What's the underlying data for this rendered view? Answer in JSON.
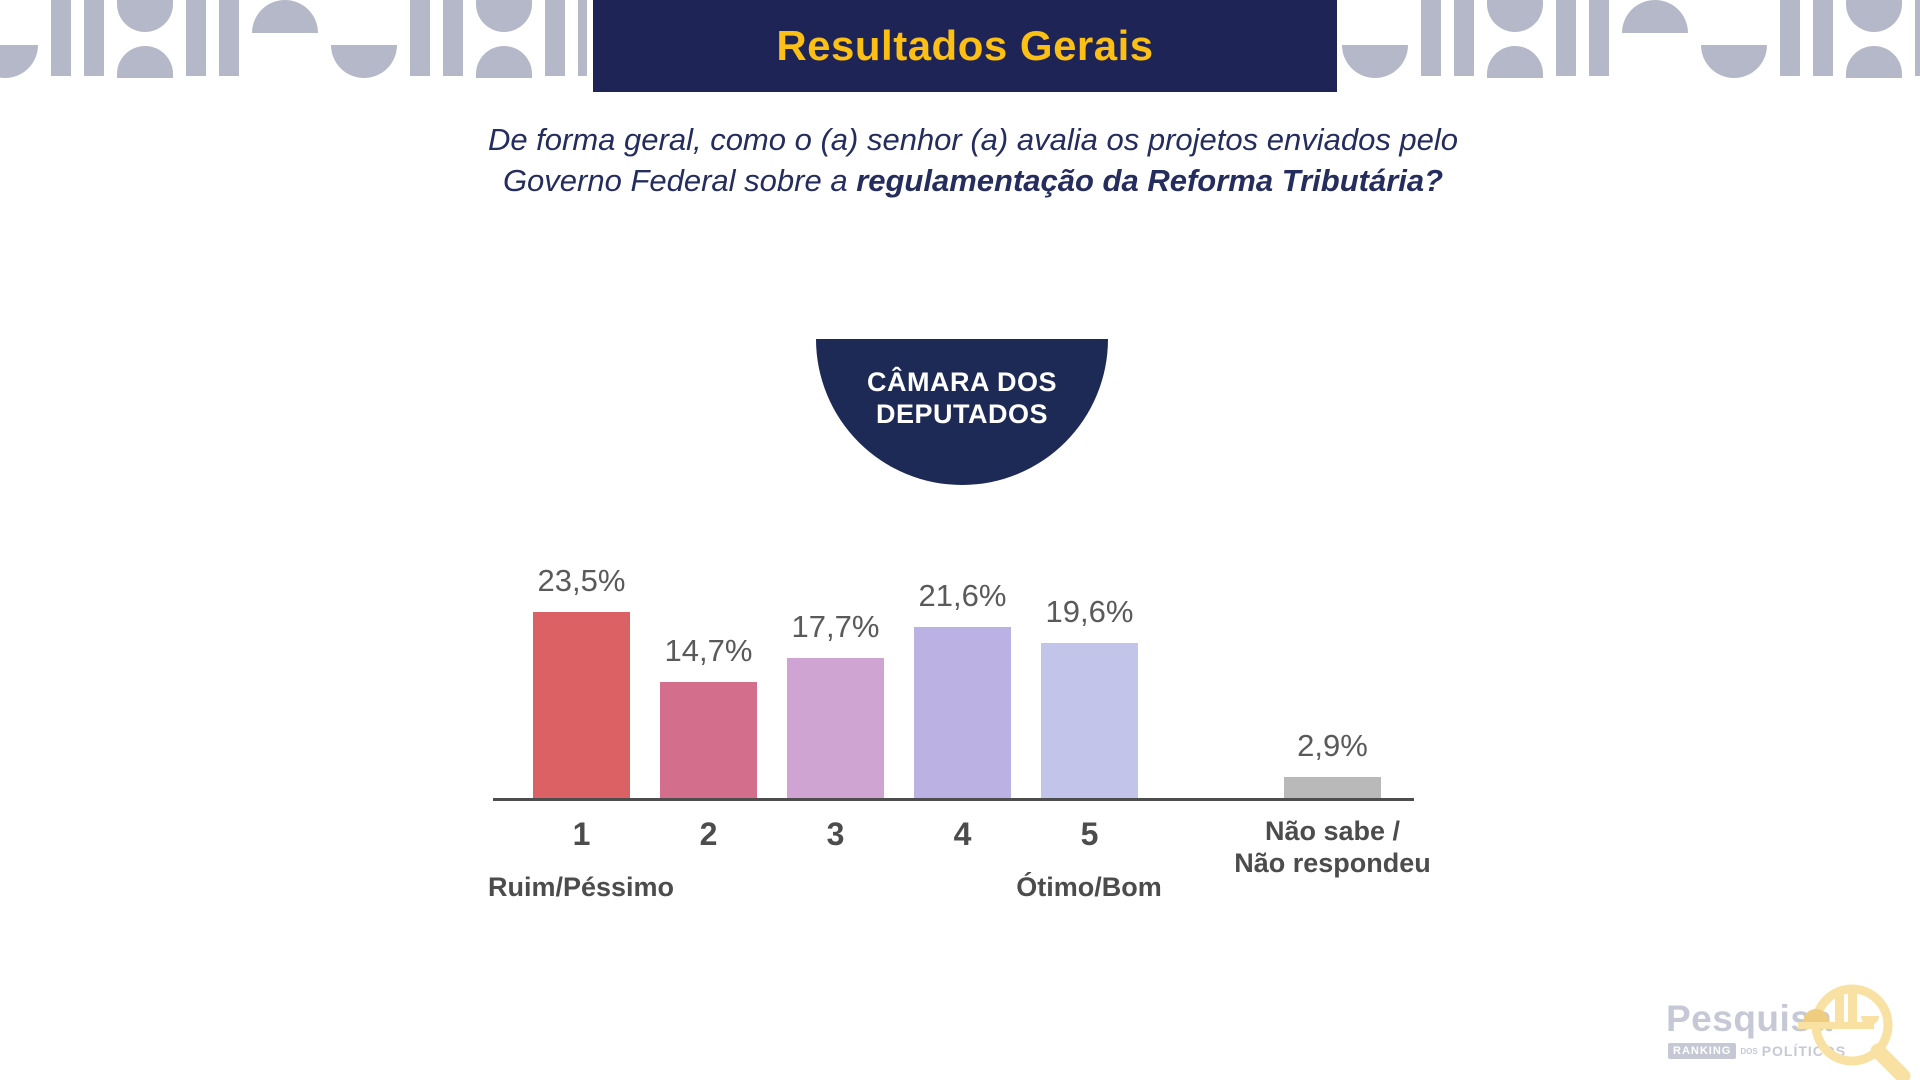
{
  "header": {
    "title": "Resultados Gerais",
    "background_color": "#1e2456",
    "title_color": "#fcbf13"
  },
  "question": {
    "line1": "De forma geral, como o (a) senhor (a) avalia os projetos enviados pelo",
    "line2_regular": "Governo Federal sobre a ",
    "line2_bold": "regulamentação da Reforma Tributária?",
    "color": "#252c5e"
  },
  "badge": {
    "line1": "CÂMARA DOS",
    "line2": "DEPUTADOS",
    "background_color": "#1e2a56",
    "text_color": "#ffffff"
  },
  "chart_data": {
    "type": "bar",
    "title": "",
    "categories": [
      "1",
      "2",
      "3",
      "4",
      "5",
      "Não sabe /\nNão respondeu"
    ],
    "values": [
      23.5,
      14.7,
      17.7,
      21.6,
      19.6,
      2.9
    ],
    "value_labels": [
      "23,5%",
      "14,7%",
      "17,7%",
      "21,6%",
      "19,6%",
      "2,9%"
    ],
    "bar_colors": [
      "#dc6165",
      "#d36f8d",
      "#cfa3d2",
      "#bbb1e2",
      "#c2c4ea",
      "#b9b9b9"
    ],
    "scale_low_label": "Ruim/Péssimo",
    "scale_high_label": "Ótimo/Bom",
    "xlabel": "",
    "ylabel": "",
    "ylim": [
      0,
      25
    ],
    "grid": false,
    "legend": false,
    "axis_color": "#4d4d4d",
    "value_label_color": "#5a5a5a",
    "tick_label_color": "#4c4c4c"
  },
  "footer": {
    "brand": "Pesquisa",
    "ranking_label": "RANKING",
    "dos_label": "DOS",
    "politicos_label": "POLÍTICOS",
    "brand_color": "#c6c8d6",
    "icon_color": "#f8e1a2",
    "icon_accent_color": "#eecd7e"
  },
  "decoration": {
    "pattern_color": "#b5b8c8"
  }
}
